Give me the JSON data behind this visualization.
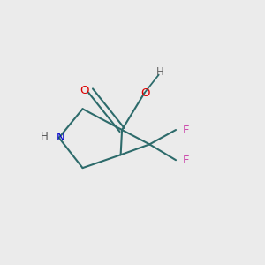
{
  "background_color": "#ebebeb",
  "figsize": [
    3.0,
    3.0
  ],
  "dpi": 100,
  "line_color": "#2d6b6b",
  "line_width": 1.5,
  "atom_colors": {
    "N": "#0000cc",
    "H_N": "#555555",
    "O": "#dd0000",
    "H_O": "#666666",
    "F": "#cc44aa"
  }
}
